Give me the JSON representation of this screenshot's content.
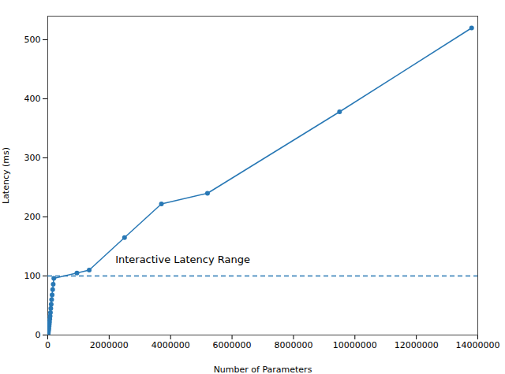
{
  "chart_data": {
    "type": "line",
    "x": [
      7000,
      14000,
      21000,
      28000,
      35000,
      42000,
      50000,
      58000,
      67000,
      77000,
      88000,
      100000,
      113000,
      127000,
      143000,
      160000,
      178000,
      198000,
      950000,
      1350000,
      2500000,
      3700000,
      5200000,
      9500000,
      13800000
    ],
    "values": [
      1,
      3,
      5,
      8,
      11,
      15,
      18,
      22,
      27,
      32,
      38,
      45,
      52,
      60,
      68,
      77,
      86,
      96,
      105,
      110,
      165,
      222,
      240,
      378,
      520
    ],
    "color": "#2878b5",
    "marker": "circle",
    "reference_lines": [
      {
        "y": 100,
        "color": "#2878b5",
        "line_style": "dashed"
      }
    ],
    "annotations": [
      {
        "text": "Interactive Latency Range",
        "x": 2200000,
        "y": 122
      }
    ],
    "xlabel": "Number of Parameters",
    "ylabel": "Latency (ms)",
    "xlim": [
      0,
      14000000
    ],
    "ylim": [
      0,
      540
    ],
    "xticks": [
      0,
      2000000,
      4000000,
      6000000,
      8000000,
      10000000,
      12000000,
      14000000
    ],
    "yticks": [
      0,
      100,
      200,
      300,
      400,
      500
    ],
    "grid": false
  }
}
